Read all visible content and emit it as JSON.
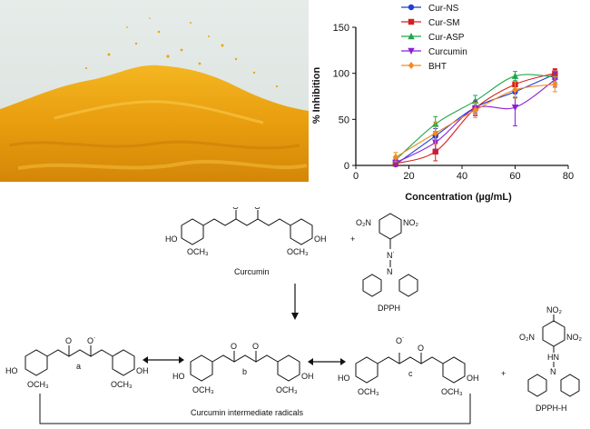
{
  "photo": {
    "subject": "turmeric-curcumin-powder",
    "colors": [
      "#e9a20f",
      "#f2b61c",
      "#cf8706",
      "#dde6e2"
    ]
  },
  "chart_data": {
    "type": "line",
    "xlabel": "Concentration (µg/mL)",
    "ylabel": "% Inhibition",
    "xlim": [
      0,
      80
    ],
    "ylim": [
      0,
      150
    ],
    "xticks": [
      "0",
      "20",
      "40",
      "60",
      "80"
    ],
    "yticks": [
      "0",
      "50",
      "100",
      "150"
    ],
    "x": [
      15,
      30,
      45,
      60,
      75
    ],
    "legend_position": "top-right",
    "series": [
      {
        "name": "Cur-NS",
        "color": "#1f3fd6",
        "marker": "circle",
        "values": [
          1,
          32,
          63,
          80,
          99
        ],
        "errors": [
          2,
          8,
          6,
          6,
          5
        ]
      },
      {
        "name": "Cur-SM",
        "color": "#d61f1f",
        "marker": "square",
        "values": [
          2,
          15,
          62,
          88,
          100
        ],
        "errors": [
          3,
          10,
          7,
          7,
          5
        ]
      },
      {
        "name": "Cur-ASP",
        "color": "#1fa64a",
        "marker": "triangle-up",
        "values": [
          6,
          45,
          70,
          97,
          96
        ],
        "errors": [
          3,
          8,
          6,
          5,
          6
        ]
      },
      {
        "name": "Curcumin",
        "color": "#8a1fd6",
        "marker": "triangle-down",
        "values": [
          3,
          25,
          62,
          63,
          93
        ],
        "errors": [
          4,
          10,
          8,
          20,
          8
        ]
      },
      {
        "name": "BHT",
        "color": "#f08c1f",
        "marker": "diamond",
        "values": [
          9,
          35,
          60,
          82,
          88
        ],
        "errors": [
          5,
          12,
          8,
          9,
          8
        ]
      }
    ]
  },
  "scheme": {
    "top_molecule_label": "Curcumin",
    "dpph_label": "DPPH",
    "dpph_h_label": "DPPH-H",
    "intermediates_caption": "Curcumin intermediate radicals",
    "radical_a": "a",
    "radical_b": "b",
    "radical_c": "c",
    "plus": "+",
    "oh": "OH",
    "ho": "HO",
    "och3": "OCH₃",
    "o": "O",
    "o_radical": "O˙",
    "no2": "NO₂",
    "o2n": "O₂N",
    "n": "N",
    "n_radical": "N˙",
    "hn": "HN",
    "arrows": [
      "double-headed",
      "double-headed",
      "down"
    ]
  }
}
